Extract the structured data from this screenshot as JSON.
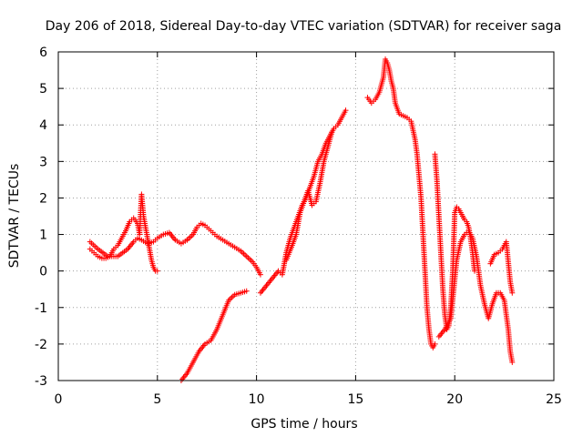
{
  "chart_data": {
    "type": "scatter",
    "title": "Day 206 of 2018, Sidereal Day-to-day VTEC variation (SDTVAR) for receiver saga",
    "xlabel": "GPS time / hours",
    "ylabel": "SDTVAR / TECUs",
    "xlim": [
      0,
      25
    ],
    "ylim": [
      -3,
      6
    ],
    "xticks": [
      "0",
      "5",
      "10",
      "15",
      "20",
      "25"
    ],
    "yticks": [
      "-3",
      "-2",
      "-1",
      "0",
      "1",
      "2",
      "3",
      "4",
      "5",
      "6"
    ],
    "grid": true,
    "marker": "plus",
    "color": "#ff0000",
    "series": [
      {
        "x": [
          1.6,
          1.8,
          2.0,
          2.2,
          2.4,
          2.6,
          2.8,
          3.0,
          3.2,
          3.4,
          3.6,
          3.8,
          4.0,
          4.1,
          4.2,
          4.3,
          4.4,
          4.5,
          4.6,
          4.7,
          4.8,
          4.9,
          5.0
        ],
        "y": [
          0.6,
          0.5,
          0.4,
          0.35,
          0.35,
          0.4,
          0.6,
          0.7,
          0.9,
          1.1,
          1.35,
          1.45,
          1.3,
          1.0,
          2.1,
          1.5,
          1.2,
          0.9,
          0.6,
          0.3,
          0.1,
          0.0,
          0.0
        ]
      },
      {
        "x": [
          1.6,
          2.0,
          2.5,
          3.0,
          3.5,
          3.8,
          4.0,
          4.2,
          4.5,
          4.8,
          5.0,
          5.3,
          5.6,
          5.9,
          6.2,
          6.5
        ],
        "y": [
          0.8,
          0.6,
          0.4,
          0.4,
          0.6,
          0.8,
          0.9,
          0.85,
          0.75,
          0.8,
          0.9,
          1.0,
          1.05,
          0.85,
          0.75,
          0.85
        ]
      },
      {
        "x": [
          6.5,
          6.8,
          7.0,
          7.2,
          7.4,
          7.6,
          7.8,
          8.0,
          8.3,
          8.6,
          8.9,
          9.2,
          9.5,
          9.8,
          10.0,
          10.2
        ],
        "y": [
          0.85,
          1.0,
          1.2,
          1.3,
          1.25,
          1.15,
          1.05,
          0.95,
          0.85,
          0.75,
          0.65,
          0.55,
          0.4,
          0.25,
          0.1,
          -0.1
        ]
      },
      {
        "x": [
          6.2,
          6.5,
          6.8,
          7.1,
          7.4,
          7.7,
          8.0,
          8.3,
          8.6,
          8.9,
          9.2,
          9.5
        ],
        "y": [
          -3.0,
          -2.8,
          -2.5,
          -2.2,
          -2.0,
          -1.9,
          -1.6,
          -1.2,
          -0.8,
          -0.65,
          -0.6,
          -0.55
        ]
      },
      {
        "x": [
          10.2,
          10.5,
          10.8,
          11.1,
          11.3,
          11.5,
          11.7,
          11.9,
          12.1,
          12.3,
          12.5,
          12.7,
          12.9,
          13.1,
          13.3,
          13.5,
          13.7,
          13.9,
          14.1,
          14.3,
          14.5
        ],
        "y": [
          -0.6,
          -0.4,
          -0.2,
          0.0,
          -0.1,
          0.5,
          0.9,
          1.2,
          1.5,
          1.8,
          2.0,
          2.3,
          2.6,
          3.0,
          3.2,
          3.5,
          3.7,
          3.9,
          4.0,
          4.2,
          4.4
        ]
      },
      {
        "x": [
          11.5,
          11.8,
          12.0,
          12.2,
          12.4,
          12.6,
          12.8,
          13.0,
          13.2,
          13.4,
          13.6,
          13.8
        ],
        "y": [
          0.3,
          0.7,
          1.0,
          1.6,
          1.9,
          2.2,
          1.8,
          1.9,
          2.4,
          3.0,
          3.4,
          3.8
        ]
      },
      {
        "x": [
          15.6,
          15.8,
          16.0,
          16.2,
          16.4,
          16.5,
          16.6,
          16.7,
          16.8,
          16.9,
          17.0,
          17.2,
          17.4,
          17.6,
          17.8,
          18.0,
          18.1,
          18.2,
          18.3,
          18.4,
          18.5,
          18.6,
          18.7,
          18.8,
          18.9,
          19.0
        ],
        "y": [
          4.75,
          4.6,
          4.7,
          4.9,
          5.3,
          5.8,
          5.7,
          5.5,
          5.2,
          5.0,
          4.6,
          4.3,
          4.25,
          4.2,
          4.1,
          3.6,
          3.2,
          2.6,
          2.0,
          1.0,
          0.0,
          -1.0,
          -1.6,
          -2.0,
          -2.1,
          -2.0
        ]
      },
      {
        "x": [
          19.0,
          19.1,
          19.2,
          19.3,
          19.4,
          19.5,
          19.6,
          19.7,
          19.8,
          19.9,
          20.0,
          20.1,
          20.2,
          20.3,
          20.4,
          20.5,
          20.6,
          20.7,
          20.8,
          20.9,
          21.0
        ],
        "y": [
          3.2,
          2.5,
          1.5,
          0.5,
          -0.5,
          -1.2,
          -1.6,
          -1.5,
          -1.0,
          0.0,
          1.6,
          1.75,
          1.7,
          1.6,
          1.5,
          1.4,
          1.35,
          1.2,
          0.9,
          0.5,
          0.0
        ]
      },
      {
        "x": [
          19.2,
          19.5,
          19.8,
          20.1,
          20.3,
          20.5,
          20.7,
          20.9,
          21.1,
          21.3,
          21.5,
          21.7,
          21.9,
          22.1,
          22.3,
          22.5,
          22.7,
          22.8,
          22.9
        ],
        "y": [
          -1.8,
          -1.6,
          -1.3,
          0.3,
          0.8,
          1.0,
          1.1,
          0.9,
          0.4,
          -0.4,
          -0.9,
          -1.3,
          -0.9,
          -0.6,
          -0.6,
          -0.8,
          -1.6,
          -2.2,
          -2.5
        ]
      },
      {
        "x": [
          21.8,
          22.0,
          22.2,
          22.4,
          22.6,
          22.8,
          22.9
        ],
        "y": [
          0.2,
          0.45,
          0.5,
          0.6,
          0.8,
          -0.3,
          -0.6
        ]
      }
    ]
  }
}
